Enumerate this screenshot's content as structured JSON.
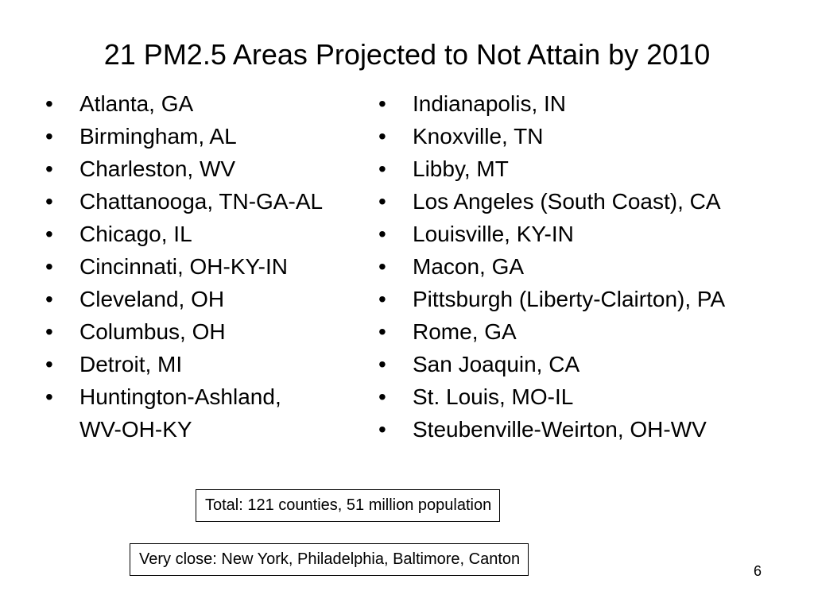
{
  "slide": {
    "title": "21 PM2.5 Areas Projected to Not Attain by 2010",
    "bullet_symbol": "•",
    "left_column": [
      "Atlanta, GA",
      "Birmingham, AL",
      "Charleston, WV",
      "Chattanooga, TN-GA-AL",
      "Chicago, IL",
      "Cincinnati, OH-KY-IN",
      "Cleveland, OH",
      "Columbus, OH",
      "Detroit, MI",
      [
        "Huntington-Ashland,",
        "WV-OH-KY"
      ]
    ],
    "right_column": [
      "Indianapolis, IN",
      "Knoxville, TN",
      "Libby, MT",
      "Los Angeles (South Coast), CA",
      "Louisville, KY-IN",
      "Macon, GA",
      "Pittsburgh (Liberty-Clairton), PA",
      "Rome, GA",
      "San Joaquin, CA",
      "St. Louis, MO-IL",
      "Steubenville-Weirton, OH-WV"
    ],
    "total_box": "Total:  121 counties, 51 million population",
    "very_close_box": "Very close:  New York, Philadelphia, Baltimore, Canton",
    "page_number": "6"
  }
}
